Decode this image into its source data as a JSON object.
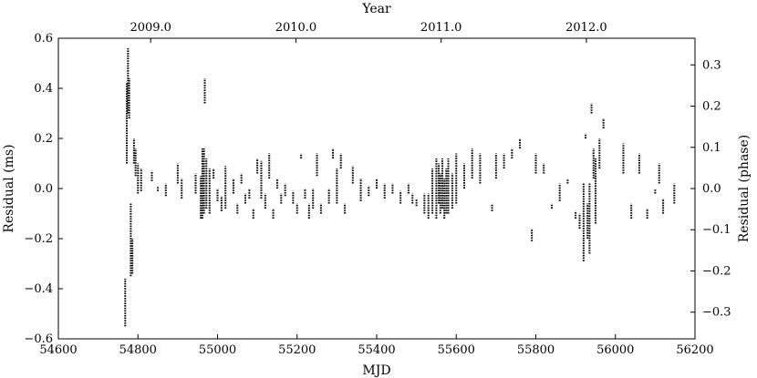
{
  "chart_data": {
    "type": "scatter",
    "xlabel": "MJD",
    "ylabel": "Residual (ms)",
    "y2label": "Residual (phase)",
    "x2label": "Year",
    "xlim": [
      54600,
      56200
    ],
    "ylim": [
      -0.6,
      0.6
    ],
    "y2lim": [
      -0.3647,
      0.3647
    ],
    "grid": false,
    "x_ticks": [
      54600,
      54800,
      55000,
      55200,
      55400,
      55600,
      55800,
      56000,
      56200
    ],
    "y_ticks": [
      -0.6,
      -0.4,
      -0.2,
      0.0,
      0.2,
      0.4,
      0.6
    ],
    "y2_ticks": [
      -0.3,
      -0.2,
      -0.1,
      0.0,
      0.1,
      0.2,
      0.3
    ],
    "x2_ticks": [
      {
        "label": "2009.0",
        "mjd": 54832
      },
      {
        "label": "2010.0",
        "mjd": 55197
      },
      {
        "label": "2011.0",
        "mjd": 55562
      },
      {
        "label": "2012.0",
        "mjd": 55927
      }
    ],
    "segments": [
      [
        54768,
        -0.55,
        -0.36
      ],
      [
        54772,
        0.1,
        0.42
      ],
      [
        54775,
        0.3,
        0.56
      ],
      [
        54778,
        0.28,
        0.44
      ],
      [
        54782,
        -0.35,
        -0.06
      ],
      [
        54786,
        -0.34,
        -0.2
      ],
      [
        54790,
        0.1,
        0.2
      ],
      [
        54794,
        0.05,
        0.16
      ],
      [
        54800,
        -0.02,
        0.1
      ],
      [
        54808,
        -0.01,
        0.08
      ],
      [
        54835,
        0.03,
        0.07
      ],
      [
        54850,
        -0.01,
        0.01
      ],
      [
        54870,
        -0.03,
        0.02
      ],
      [
        54900,
        0.02,
        0.1
      ],
      [
        54910,
        -0.04,
        0.04
      ],
      [
        54945,
        -0.02,
        0.06
      ],
      [
        54958,
        -0.12,
        0.05
      ],
      [
        54962,
        -0.12,
        0.16
      ],
      [
        54966,
        -0.1,
        0.16
      ],
      [
        54968,
        0.34,
        0.44
      ],
      [
        54972,
        -0.08,
        0.12
      ],
      [
        54980,
        -0.1,
        0.08
      ],
      [
        54990,
        0.04,
        0.08
      ],
      [
        55000,
        -0.05,
        0.0
      ],
      [
        55010,
        -0.09,
        -0.03
      ],
      [
        55020,
        -0.08,
        0.09
      ],
      [
        55040,
        -0.02,
        0.04
      ],
      [
        55050,
        -0.1,
        -0.06
      ],
      [
        55060,
        0.02,
        0.06
      ],
      [
        55070,
        -0.06,
        -0.02
      ],
      [
        55080,
        -0.04,
        0.0
      ],
      [
        55090,
        -0.12,
        -0.08
      ],
      [
        55100,
        0.06,
        0.12
      ],
      [
        55110,
        -0.04,
        0.11
      ],
      [
        55120,
        -0.08,
        -0.02
      ],
      [
        55130,
        0.04,
        0.14
      ],
      [
        55140,
        -0.12,
        -0.08
      ],
      [
        55150,
        0.0,
        0.04
      ],
      [
        55160,
        -0.06,
        -0.02
      ],
      [
        55170,
        -0.03,
        0.02
      ],
      [
        55190,
        -0.06,
        -0.01
      ],
      [
        55200,
        -0.1,
        -0.06
      ],
      [
        55210,
        0.12,
        0.14
      ],
      [
        55220,
        -0.04,
        0.0
      ],
      [
        55230,
        -0.12,
        -0.06
      ],
      [
        55240,
        -0.08,
        0.0
      ],
      [
        55250,
        0.05,
        0.14
      ],
      [
        55260,
        -0.1,
        -0.06
      ],
      [
        55280,
        -0.06,
        0.0
      ],
      [
        55290,
        0.12,
        0.16
      ],
      [
        55300,
        -0.06,
        0.08
      ],
      [
        55310,
        0.08,
        0.14
      ],
      [
        55320,
        -0.1,
        -0.06
      ],
      [
        55340,
        0.02,
        0.09
      ],
      [
        55360,
        -0.05,
        0.04
      ],
      [
        55380,
        -0.03,
        0.01
      ],
      [
        55400,
        0.0,
        0.04
      ],
      [
        55420,
        -0.04,
        0.02
      ],
      [
        55440,
        -0.02,
        0.02
      ],
      [
        55460,
        -0.06,
        -0.01
      ],
      [
        55480,
        -0.02,
        0.02
      ],
      [
        55490,
        -0.06,
        -0.02
      ],
      [
        55500,
        -0.07,
        -0.04
      ],
      [
        55520,
        -0.1,
        -0.02
      ],
      [
        55530,
        -0.12,
        -0.02
      ],
      [
        55540,
        -0.1,
        0.08
      ],
      [
        55550,
        -0.12,
        0.12
      ],
      [
        55556,
        -0.06,
        0.1
      ],
      [
        55560,
        -0.1,
        0.06
      ],
      [
        55565,
        -0.08,
        0.12
      ],
      [
        55570,
        -0.12,
        0.04
      ],
      [
        55575,
        -0.1,
        0.08
      ],
      [
        55580,
        -0.1,
        0.12
      ],
      [
        55590,
        -0.08,
        0.06
      ],
      [
        55600,
        -0.06,
        0.14
      ],
      [
        55620,
        0.0,
        0.1
      ],
      [
        55640,
        0.04,
        0.16
      ],
      [
        55660,
        0.02,
        0.14
      ],
      [
        55690,
        -0.09,
        -0.06
      ],
      [
        55700,
        0.04,
        0.14
      ],
      [
        55720,
        0.08,
        0.14
      ],
      [
        55740,
        0.12,
        0.16
      ],
      [
        55760,
        0.16,
        0.2
      ],
      [
        55790,
        -0.21,
        -0.16
      ],
      [
        55800,
        0.06,
        0.14
      ],
      [
        55820,
        0.06,
        0.1
      ],
      [
        55840,
        -0.08,
        -0.06
      ],
      [
        55860,
        -0.05,
        0.02
      ],
      [
        55880,
        0.02,
        0.04
      ],
      [
        55900,
        -0.12,
        -0.09
      ],
      [
        55910,
        -0.16,
        -0.1
      ],
      [
        55920,
        -0.29,
        0.02
      ],
      [
        55925,
        0.2,
        0.22
      ],
      [
        55930,
        -0.2,
        -0.06
      ],
      [
        55935,
        -0.26,
        0.02
      ],
      [
        55940,
        0.3,
        0.34
      ],
      [
        55945,
        0.04,
        0.16
      ],
      [
        55950,
        -0.14,
        0.12
      ],
      [
        55960,
        0.08,
        0.2
      ],
      [
        55970,
        0.24,
        0.28
      ],
      [
        56020,
        0.06,
        0.18
      ],
      [
        56040,
        -0.12,
        -0.06
      ],
      [
        56060,
        0.06,
        0.14
      ],
      [
        56080,
        -0.12,
        -0.08
      ],
      [
        56100,
        -0.02,
        0.0
      ],
      [
        56110,
        0.02,
        0.1
      ],
      [
        56120,
        -0.1,
        -0.04
      ],
      [
        56148,
        -0.06,
        0.02
      ]
    ]
  }
}
